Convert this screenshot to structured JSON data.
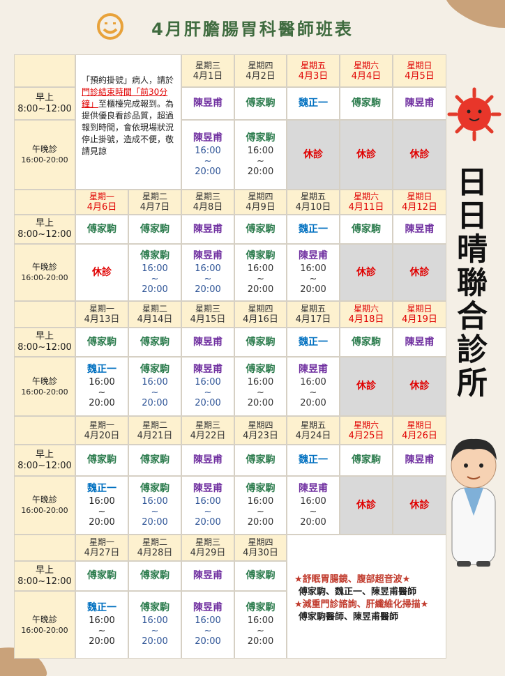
{
  "header": {
    "title": "4月肝膽腸胃科醫師班表"
  },
  "clinic_name": "日日晴聯合診所",
  "notice": {
    "parts": [
      "「預約掛號」病人，請於",
      "門診結束時間「前30分鐘」",
      "至櫃檯完成報到。為提供優良看診品質，超過報到時間，會依現場狀況停止掛號，造成不便，敬請見諒"
    ]
  },
  "row_labels": {
    "morning": [
      "早上",
      "8:00~12:00"
    ],
    "evening": [
      "午晚診",
      "16:00-20:00"
    ]
  },
  "weeks": [
    {
      "days": [
        null,
        null,
        {
          "weekday": "星期三",
          "date": "4月1日",
          "color": "#333333"
        },
        {
          "weekday": "星期四",
          "date": "4月2日",
          "color": "#333333"
        },
        {
          "weekday": "星期五",
          "date": "4月3日",
          "color": "#e00000"
        },
        {
          "weekday": "星期六",
          "date": "4月4日",
          "color": "#e00000"
        },
        {
          "weekday": "星期日",
          "date": "4月5日",
          "color": "#e00000"
        }
      ],
      "morning": [
        null,
        null,
        {
          "lines": [
            "陳昱甫"
          ],
          "color": "#7030a0"
        },
        {
          "lines": [
            "傅家駒"
          ],
          "color": "#2e7d4f"
        },
        {
          "lines": [
            "魏正一"
          ],
          "color": "#0070c0"
        },
        {
          "lines": [
            "傅家駒"
          ],
          "color": "#2e7d4f"
        },
        {
          "lines": [
            "陳昱甫"
          ],
          "color": "#7030a0"
        }
      ],
      "evening": [
        null,
        null,
        {
          "lines": [
            "陳昱甫",
            "16:00",
            "~",
            "20:00"
          ],
          "color": "#7030a0",
          "time_color": "#2f5597"
        },
        {
          "lines": [
            "傅家駒",
            "16:00",
            "~",
            "20:00"
          ],
          "color": "#2e7d4f",
          "time_color": "#333333"
        },
        {
          "lines": [
            "休診"
          ],
          "color": "#e00000",
          "shaded": true
        },
        {
          "lines": [
            "休診"
          ],
          "color": "#e00000",
          "shaded": true
        },
        {
          "lines": [
            "休診"
          ],
          "color": "#e00000",
          "shaded": true
        }
      ]
    },
    {
      "days": [
        {
          "weekday": "星期一",
          "date": "4月6日",
          "color": "#e00000"
        },
        {
          "weekday": "星期二",
          "date": "4月7日",
          "color": "#333333"
        },
        {
          "weekday": "星期三",
          "date": "4月8日",
          "color": "#333333"
        },
        {
          "weekday": "星期四",
          "date": "4月9日",
          "color": "#333333"
        },
        {
          "weekday": "星期五",
          "date": "4月10日",
          "color": "#333333"
        },
        {
          "weekday": "星期六",
          "date": "4月11日",
          "color": "#e00000"
        },
        {
          "weekday": "星期日",
          "date": "4月12日",
          "color": "#e00000"
        }
      ],
      "morning": [
        {
          "lines": [
            "傅家駒"
          ],
          "color": "#2e7d4f"
        },
        {
          "lines": [
            "傅家駒"
          ],
          "color": "#2e7d4f"
        },
        {
          "lines": [
            "陳昱甫"
          ],
          "color": "#7030a0"
        },
        {
          "lines": [
            "傅家駒"
          ],
          "color": "#2e7d4f"
        },
        {
          "lines": [
            "魏正一"
          ],
          "color": "#0070c0"
        },
        {
          "lines": [
            "傅家駒"
          ],
          "color": "#2e7d4f"
        },
        {
          "lines": [
            "陳昱甫"
          ],
          "color": "#7030a0"
        }
      ],
      "evening": [
        {
          "lines": [
            "休診"
          ],
          "color": "#e00000"
        },
        {
          "lines": [
            "傅家駒",
            "16:00",
            "~",
            "20:00"
          ],
          "color": "#2e7d4f",
          "time_color": "#2f5597"
        },
        {
          "lines": [
            "陳昱甫",
            "16:00",
            "~",
            "20:00"
          ],
          "color": "#7030a0",
          "time_color": "#2f5597"
        },
        {
          "lines": [
            "傅家駒",
            "16:00",
            "~",
            "20:00"
          ],
          "color": "#2e7d4f",
          "time_color": "#333333"
        },
        {
          "lines": [
            "陳昱甫",
            "16:00",
            "~",
            "20:00"
          ],
          "color": "#7030a0",
          "time_color": "#333333"
        },
        {
          "lines": [
            "休診"
          ],
          "color": "#e00000",
          "shaded": true
        },
        {
          "lines": [
            "休診"
          ],
          "color": "#e00000",
          "shaded": true
        }
      ]
    },
    {
      "days": [
        {
          "weekday": "星期一",
          "date": "4月13日",
          "color": "#333333"
        },
        {
          "weekday": "星期二",
          "date": "4月14日",
          "color": "#333333"
        },
        {
          "weekday": "星期三",
          "date": "4月15日",
          "color": "#333333"
        },
        {
          "weekday": "星期四",
          "date": "4月16日",
          "color": "#333333"
        },
        {
          "weekday": "星期五",
          "date": "4月17日",
          "color": "#333333"
        },
        {
          "weekday": "星期六",
          "date": "4月18日",
          "color": "#e00000"
        },
        {
          "weekday": "星期日",
          "date": "4月19日",
          "color": "#e00000"
        }
      ],
      "morning": [
        {
          "lines": [
            "傅家駒"
          ],
          "color": "#2e7d4f"
        },
        {
          "lines": [
            "傅家駒"
          ],
          "color": "#2e7d4f"
        },
        {
          "lines": [
            "陳昱甫"
          ],
          "color": "#7030a0"
        },
        {
          "lines": [
            "傅家駒"
          ],
          "color": "#2e7d4f"
        },
        {
          "lines": [
            "魏正一"
          ],
          "color": "#0070c0"
        },
        {
          "lines": [
            "傅家駒"
          ],
          "color": "#2e7d4f"
        },
        {
          "lines": [
            "陳昱甫"
          ],
          "color": "#7030a0"
        }
      ],
      "evening": [
        {
          "lines": [
            "魏正一",
            "16:00",
            "~",
            "20:00"
          ],
          "color": "#0070c0",
          "time_color": "#222222"
        },
        {
          "lines": [
            "傅家駒",
            "16:00",
            "~",
            "20:00"
          ],
          "color": "#2e7d4f",
          "time_color": "#2f5597"
        },
        {
          "lines": [
            "陳昱甫",
            "16:00",
            "~",
            "20:00"
          ],
          "color": "#7030a0",
          "time_color": "#2f5597"
        },
        {
          "lines": [
            "傅家駒",
            "16:00",
            "~",
            "20:00"
          ],
          "color": "#2e7d4f",
          "time_color": "#333333"
        },
        {
          "lines": [
            "陳昱甫",
            "16:00",
            "~",
            "20:00"
          ],
          "color": "#7030a0",
          "time_color": "#333333"
        },
        {
          "lines": [
            "休診"
          ],
          "color": "#e00000",
          "shaded": true
        },
        {
          "lines": [
            "休診"
          ],
          "color": "#e00000",
          "shaded": true
        }
      ]
    },
    {
      "days": [
        {
          "weekday": "星期一",
          "date": "4月20日",
          "color": "#333333"
        },
        {
          "weekday": "星期二",
          "date": "4月21日",
          "color": "#333333"
        },
        {
          "weekday": "星期三",
          "date": "4月22日",
          "color": "#333333"
        },
        {
          "weekday": "星期四",
          "date": "4月23日",
          "color": "#333333"
        },
        {
          "weekday": "星期五",
          "date": "4月24日",
          "color": "#333333"
        },
        {
          "weekday": "星期六",
          "date": "4月25日",
          "color": "#e00000"
        },
        {
          "weekday": "星期日",
          "date": "4月26日",
          "color": "#e00000"
        }
      ],
      "morning": [
        {
          "lines": [
            "傅家駒"
          ],
          "color": "#2e7d4f"
        },
        {
          "lines": [
            "傅家駒"
          ],
          "color": "#2e7d4f"
        },
        {
          "lines": [
            "陳昱甫"
          ],
          "color": "#7030a0"
        },
        {
          "lines": [
            "傅家駒"
          ],
          "color": "#2e7d4f"
        },
        {
          "lines": [
            "魏正一"
          ],
          "color": "#0070c0"
        },
        {
          "lines": [
            "傅家駒"
          ],
          "color": "#2e7d4f"
        },
        {
          "lines": [
            "陳昱甫"
          ],
          "color": "#7030a0"
        }
      ],
      "evening": [
        {
          "lines": [
            "魏正一",
            "16:00",
            "~",
            "20:00"
          ],
          "color": "#0070c0",
          "time_color": "#222222"
        },
        {
          "lines": [
            "傅家駒",
            "16:00",
            "~",
            "20:00"
          ],
          "color": "#2e7d4f",
          "time_color": "#2f5597"
        },
        {
          "lines": [
            "陳昱甫",
            "16:00",
            "~",
            "20:00"
          ],
          "color": "#7030a0",
          "time_color": "#2f5597"
        },
        {
          "lines": [
            "傅家駒",
            "16:00",
            "~",
            "20:00"
          ],
          "color": "#2e7d4f",
          "time_color": "#333333"
        },
        {
          "lines": [
            "陳昱甫",
            "16:00",
            "~",
            "20:00"
          ],
          "color": "#7030a0",
          "time_color": "#333333"
        },
        {
          "lines": [
            "休診"
          ],
          "color": "#e00000",
          "shaded": true
        },
        {
          "lines": [
            "休診"
          ],
          "color": "#e00000",
          "shaded": true
        }
      ]
    },
    {
      "days": [
        {
          "weekday": "星期一",
          "date": "4月27日",
          "color": "#333333"
        },
        {
          "weekday": "星期二",
          "date": "4月28日",
          "color": "#333333"
        },
        {
          "weekday": "星期三",
          "date": "4月29日",
          "color": "#333333"
        },
        {
          "weekday": "星期四",
          "date": "4月30日",
          "color": "#333333"
        },
        null,
        null,
        null
      ],
      "morning": [
        {
          "lines": [
            "傅家駒"
          ],
          "color": "#2e7d4f"
        },
        {
          "lines": [
            "傅家駒"
          ],
          "color": "#2e7d4f"
        },
        {
          "lines": [
            "陳昱甫"
          ],
          "color": "#7030a0"
        },
        {
          "lines": [
            "傅家駒"
          ],
          "color": "#2e7d4f"
        },
        null,
        null,
        null
      ],
      "evening": [
        {
          "lines": [
            "魏正一",
            "16:00",
            "~",
            "20:00"
          ],
          "color": "#0070c0",
          "time_color": "#222222"
        },
        {
          "lines": [
            "傅家駒",
            "16:00",
            "~",
            "20:00"
          ],
          "color": "#2e7d4f",
          "time_color": "#2f5597"
        },
        {
          "lines": [
            "陳昱甫",
            "16:00",
            "~",
            "20:00"
          ],
          "color": "#7030a0",
          "time_color": "#2f5597"
        },
        {
          "lines": [
            "傅家駒",
            "16:00",
            "~",
            "20:00"
          ],
          "color": "#2e7d4f",
          "time_color": "#333333"
        },
        null,
        null,
        null
      ]
    }
  ],
  "services": [
    {
      "text": "★舒眠胃腸鏡、腹部超音波★",
      "color": "#c0392b"
    },
    {
      "text": "傅家駒、魏正一、陳昱甫醫師",
      "color": "#222222"
    },
    {
      "text": "★減重門診諮詢、肝纖維化掃描★",
      "color": "#c0392b"
    },
    {
      "text": "傅家駒醫師、陳昱甫醫師",
      "color": "#222222"
    }
  ]
}
